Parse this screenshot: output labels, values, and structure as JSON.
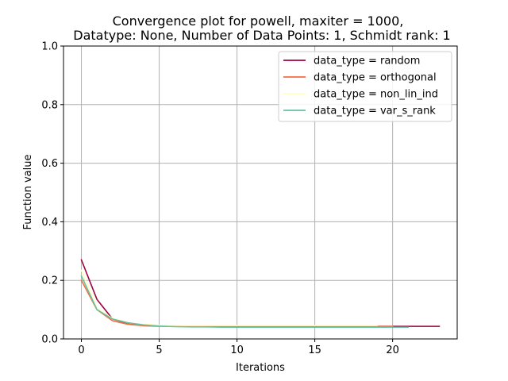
{
  "chart_data": {
    "type": "line",
    "title_line1": "Convergence plot for powell, maxiter = 1000,",
    "title_line2": "Datatype: None, Number of Data Points: 1, Schmidt rank: 1",
    "xlabel": "Iterations",
    "ylabel": "Function value",
    "xlim": [
      -1.15,
      24.15
    ],
    "ylim": [
      0,
      1.0
    ],
    "xticks": [
      0,
      5,
      10,
      15,
      20
    ],
    "yticks": [
      0.0,
      0.2,
      0.4,
      0.6,
      0.8,
      1.0
    ],
    "ytick_labels": [
      "0.0",
      "0.2",
      "0.4",
      "0.6",
      "0.8",
      "1.0"
    ],
    "grid": true,
    "legend_position": "top-right",
    "series": [
      {
        "name": "data_type = random",
        "color": "#9e0142",
        "x": [
          0,
          1,
          2,
          3,
          4,
          5,
          6,
          7,
          8,
          9,
          10,
          11,
          12,
          13,
          14,
          15,
          16,
          17,
          18,
          19,
          20,
          21,
          22,
          23
        ],
        "y": [
          0.27,
          0.135,
          0.068,
          0.053,
          0.047,
          0.045,
          0.044,
          0.044,
          0.044,
          0.043,
          0.043,
          0.043,
          0.043,
          0.043,
          0.043,
          0.043,
          0.043,
          0.043,
          0.043,
          0.043,
          0.043,
          0.043,
          0.043,
          0.043
        ]
      },
      {
        "name": "data_type = orthogonal",
        "color": "#f46d43",
        "x": [
          0,
          1,
          2,
          3,
          4,
          5,
          6,
          7,
          8,
          9,
          10,
          11,
          12,
          13,
          14,
          15,
          16,
          17,
          18,
          19,
          20
        ],
        "y": [
          0.2,
          0.1,
          0.062,
          0.05,
          0.045,
          0.043,
          0.043,
          0.043,
          0.043,
          0.043,
          0.043,
          0.043,
          0.043,
          0.043,
          0.043,
          0.043,
          0.043,
          0.043,
          0.043,
          0.043,
          0.043
        ]
      },
      {
        "name": "data_type = non_lin_ind",
        "color": "#ffffbf",
        "x": [
          0,
          1,
          2,
          3,
          4,
          5,
          6,
          7,
          8,
          9,
          10,
          11,
          12,
          13,
          14,
          15,
          16,
          17,
          18,
          19
        ],
        "y": [
          0.235,
          0.105,
          0.07,
          0.055,
          0.05,
          0.047,
          0.046,
          0.046,
          0.046,
          0.046,
          0.046,
          0.046,
          0.046,
          0.046,
          0.046,
          0.046,
          0.046,
          0.046,
          0.046,
          0.046
        ]
      },
      {
        "name": "data_type = var_s_rank",
        "color": "#66c2a5",
        "x": [
          0,
          1,
          2,
          3,
          4,
          5,
          6,
          7,
          8,
          9,
          10,
          11,
          12,
          13,
          14,
          15,
          16,
          17,
          18,
          19,
          20,
          21
        ],
        "y": [
          0.215,
          0.1,
          0.068,
          0.055,
          0.048,
          0.044,
          0.042,
          0.041,
          0.041,
          0.04,
          0.04,
          0.04,
          0.04,
          0.04,
          0.04,
          0.04,
          0.04,
          0.04,
          0.04,
          0.04,
          0.04,
          0.04
        ]
      }
    ]
  }
}
